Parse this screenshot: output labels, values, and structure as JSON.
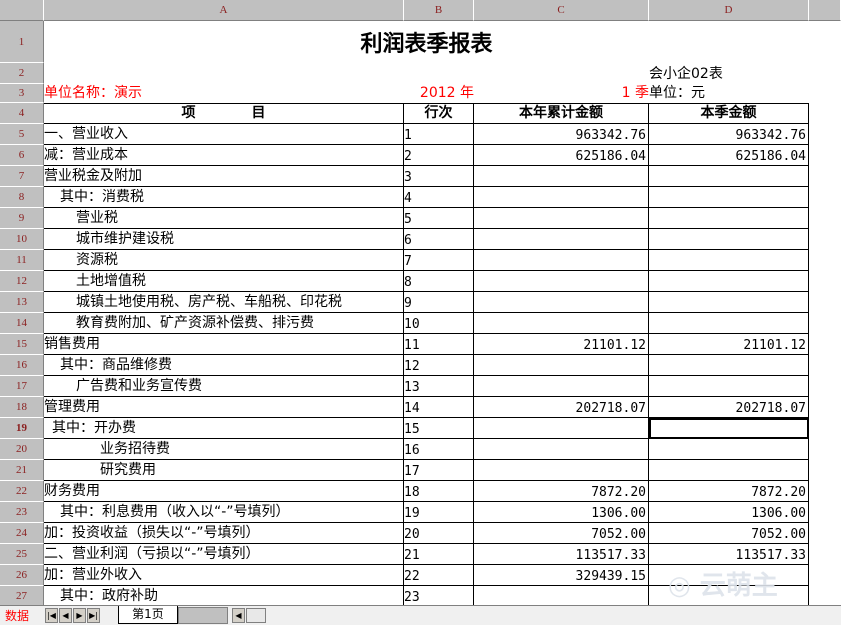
{
  "columns": [
    "A",
    "B",
    "C",
    "D"
  ],
  "title": "利润表季报表",
  "form_code": "会小企02表",
  "unit_name": "单位名称：演示",
  "year": "2012 年",
  "quarter": "1 季",
  "currency_unit": "单位：元",
  "headers": {
    "item": "项　　　　目",
    "line": "行次",
    "ytd": "本年累计金额",
    "quarter": "本季金额"
  },
  "rows": [
    {
      "r": "5",
      "item": "一、营业收入",
      "line": "1",
      "ytd": "963342.76",
      "q": "963342.76"
    },
    {
      "r": "6",
      "item": "减：营业成本",
      "line": "2",
      "ytd": "625186.04",
      "q": "625186.04"
    },
    {
      "r": "7",
      "item": "营业税金及附加",
      "line": "3",
      "ytd": "",
      "q": ""
    },
    {
      "r": "8",
      "item": "其中：消费税",
      "line": "4",
      "ytd": "",
      "q": ""
    },
    {
      "r": "9",
      "item": "营业税",
      "line": "5",
      "ytd": "",
      "q": ""
    },
    {
      "r": "10",
      "item": "城市维护建设税",
      "line": "6",
      "ytd": "",
      "q": ""
    },
    {
      "r": "11",
      "item": "资源税",
      "line": "7",
      "ytd": "",
      "q": ""
    },
    {
      "r": "12",
      "item": "土地增值税",
      "line": "8",
      "ytd": "",
      "q": ""
    },
    {
      "r": "13",
      "item": "城镇土地使用税、房产税、车船税、印花税",
      "line": "9",
      "ytd": "",
      "q": ""
    },
    {
      "r": "14",
      "item": "教育费附加、矿产资源补偿费、排污费",
      "line": "10",
      "ytd": "",
      "q": ""
    },
    {
      "r": "15",
      "item": "销售费用",
      "line": "11",
      "ytd": "21101.12",
      "q": "21101.12"
    },
    {
      "r": "16",
      "item": "其中：商品维修费",
      "line": "12",
      "ytd": "",
      "q": ""
    },
    {
      "r": "17",
      "item": "广告费和业务宣传费",
      "line": "13",
      "ytd": "",
      "q": ""
    },
    {
      "r": "18",
      "item": "管理费用",
      "line": "14",
      "ytd": "202718.07",
      "q": "202718.07"
    },
    {
      "r": "19",
      "item": "其中：开办费",
      "line": "15",
      "ytd": "",
      "q": ""
    },
    {
      "r": "20",
      "item": "业务招待费",
      "line": "16",
      "ytd": "",
      "q": ""
    },
    {
      "r": "21",
      "item": "研究费用",
      "line": "17",
      "ytd": "",
      "q": ""
    },
    {
      "r": "22",
      "item": "财务费用",
      "line": "18",
      "ytd": "7872.20",
      "q": "7872.20"
    },
    {
      "r": "23",
      "item": "其中：利息费用（收入以“-”号填列）",
      "line": "19",
      "ytd": "1306.00",
      "q": "1306.00"
    },
    {
      "r": "24",
      "item": "加：投资收益（损失以“-”号填列）",
      "line": "20",
      "ytd": "7052.00",
      "q": "7052.00"
    },
    {
      "r": "25",
      "item": "二、营业利润（亏损以“-”号填列）",
      "line": "21",
      "ytd": "113517.33",
      "q": "113517.33"
    },
    {
      "r": "26",
      "item": "加：营业外收入",
      "line": "22",
      "ytd": "329439.15",
      "q": ""
    },
    {
      "r": "27",
      "item": "其中：政府补助",
      "line": "23",
      "ytd": "",
      "q": ""
    }
  ],
  "sheet_tabs": {
    "mode": "数据",
    "active": "第1页"
  },
  "watermark": "云萌主 yunmengzhu.com"
}
